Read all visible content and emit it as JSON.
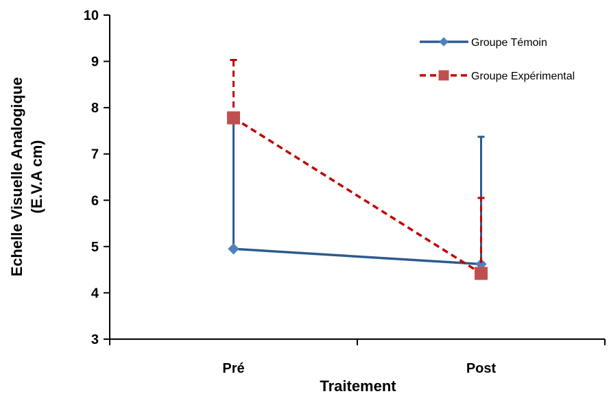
{
  "chart_data": {
    "type": "line",
    "xlabel": "Traitement",
    "ylabel_line1": "Echelle  Visuelle  Analogique",
    "ylabel_line2": "(E.V.A cm)",
    "categories": [
      "Pré",
      "Post"
    ],
    "ylim": [
      3,
      10
    ],
    "yticks": [
      "3",
      "4",
      "5",
      "6",
      "7",
      "8",
      "9",
      "10"
    ],
    "grid": false,
    "legend_position": "top-right",
    "series": [
      {
        "name": "Groupe Témoin",
        "values": [
          4.95,
          4.62
        ],
        "error_upper": [
          7.77,
          7.37
        ],
        "color": "#2E5A8F",
        "marker_color": "#4F81BD",
        "marker": "diamond",
        "dashed": false
      },
      {
        "name": "Groupe Expérimental",
        "values": [
          7.78,
          4.42
        ],
        "error_upper": [
          9.03,
          6.05
        ],
        "color": "#C00000",
        "marker_color": "#C0504D",
        "marker": "square",
        "dashed": true
      }
    ]
  }
}
